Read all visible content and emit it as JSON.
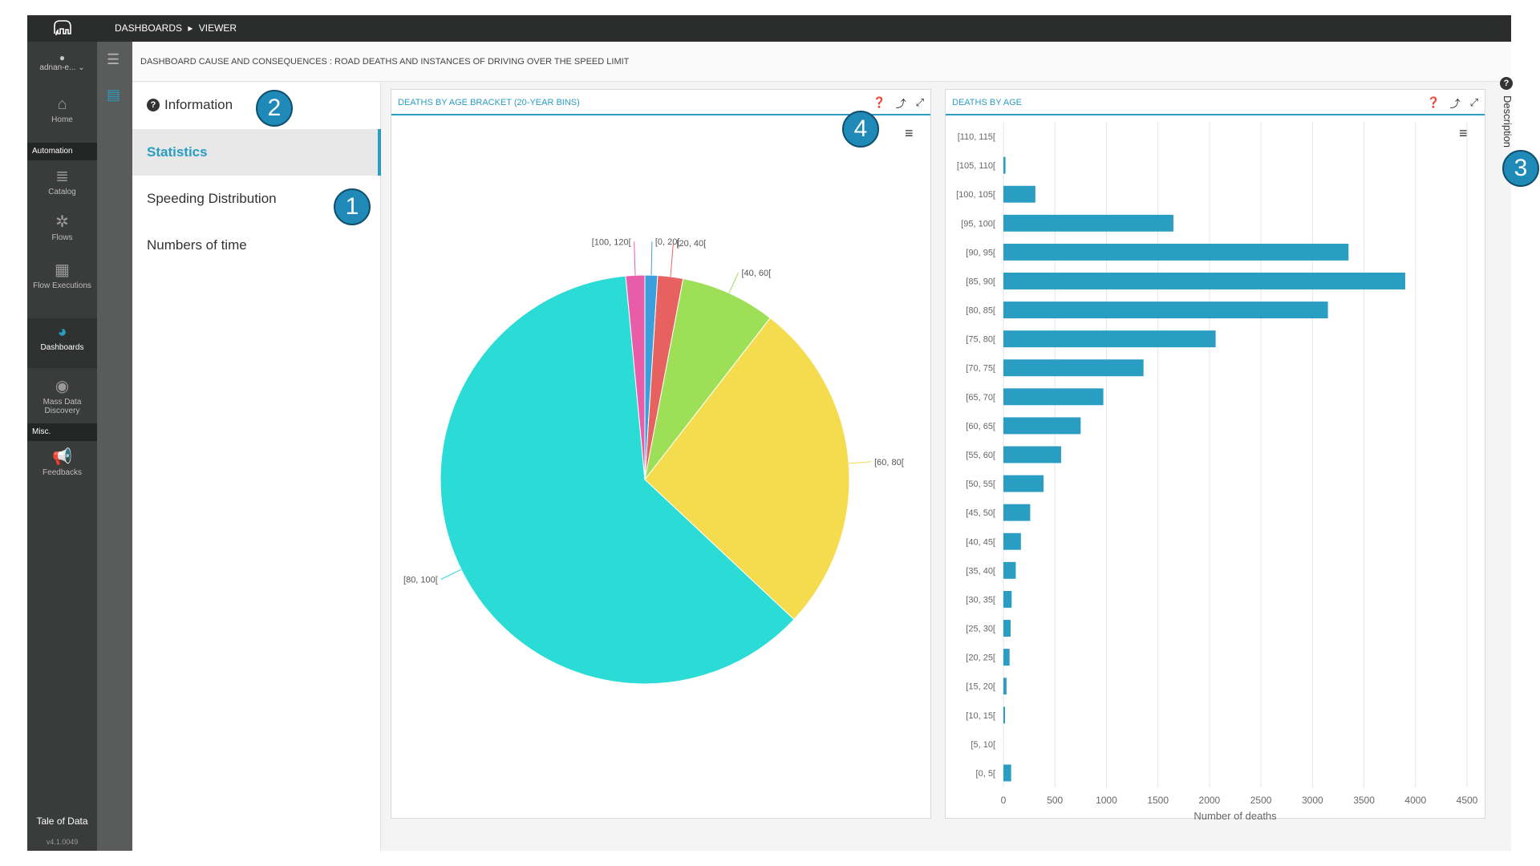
{
  "nav": {
    "user": "adnan-e... ⌄",
    "items": [
      {
        "label": "Home",
        "icon": "home-icon",
        "glyph": "⌂"
      },
      {
        "label": "Catalog",
        "icon": "database-icon",
        "glyph": "≣"
      },
      {
        "label": "Flows",
        "icon": "flows-icon",
        "glyph": "✲"
      },
      {
        "label": "Flow Executions",
        "icon": "calendar-clock-icon",
        "glyph": "▦"
      },
      {
        "label": "Dashboards",
        "icon": "dashboard-icon",
        "glyph": "◕"
      },
      {
        "label": "Mass Data Discovery",
        "icon": "eye-icon",
        "glyph": "◉"
      },
      {
        "label": "Feedbacks",
        "icon": "megaphone-icon",
        "glyph": "📢"
      }
    ],
    "sections": {
      "automation": "Automation",
      "misc": "Misc."
    },
    "brand": "Tale of Data",
    "version": "v4.1.0049"
  },
  "topbar": {
    "crumb1": "DASHBOARDS",
    "sep": "▸",
    "crumb2": "VIEWER"
  },
  "subhead": "DASHBOARD CAUSE AND CONSEQUENCES : ROAD DEATHS AND INSTANCES OF DRIVING OVER THE SPEED LIMIT",
  "sidemenu": {
    "info": "Information",
    "items": [
      "Statistics",
      "Speeding Distribution",
      "Numbers of time"
    ]
  },
  "badges": [
    "1",
    "2",
    "3",
    "4"
  ],
  "description_label": "Description",
  "colors": {
    "accent": "#2a9dc2",
    "bar": "#2a9dc2"
  },
  "chart_data": [
    {
      "type": "pie",
      "title": "DEATHS BY AGE BRACKET (20-YEAR BINS)",
      "categories": [
        "[0, 20[",
        "[20, 40[",
        "[40, 60[",
        "[60, 80[",
        "[80, 100[",
        "[100, 120["
      ],
      "values": [
        1.0,
        2.0,
        7.5,
        26.5,
        61.5,
        1.5
      ],
      "colors": [
        "#3aa0dc",
        "#e86161",
        "#9ddf57",
        "#f4dc4e",
        "#2adbd6",
        "#e85ca8"
      ]
    },
    {
      "type": "bar",
      "orientation": "horizontal",
      "title": "DEATHS BY AGE",
      "xlabel": "Number of deaths",
      "ylabel": "",
      "xlim": [
        0,
        4500
      ],
      "xticks": [
        0,
        500,
        1000,
        1500,
        2000,
        2500,
        3000,
        3500,
        4000,
        4500
      ],
      "categories": [
        "[110, 115[",
        "[105, 110[",
        "[100, 105[",
        "[95, 100[",
        "[90, 95[",
        "[85, 90[",
        "[80, 85[",
        "[75, 80[",
        "[70, 75[",
        "[65, 70[",
        "[60, 65[",
        "[55, 60[",
        "[50, 55[",
        "[45, 50[",
        "[40, 45[",
        "[35, 40[",
        "[30, 35[",
        "[25, 30[",
        "[20, 25[",
        "[15, 20[",
        "[10, 15[",
        "[5, 10[",
        "[0, 5["
      ],
      "values": [
        0,
        20,
        310,
        1650,
        3350,
        3900,
        3150,
        2060,
        1360,
        970,
        750,
        560,
        390,
        260,
        170,
        120,
        80,
        70,
        60,
        30,
        15,
        0,
        75
      ],
      "grid": true
    }
  ]
}
